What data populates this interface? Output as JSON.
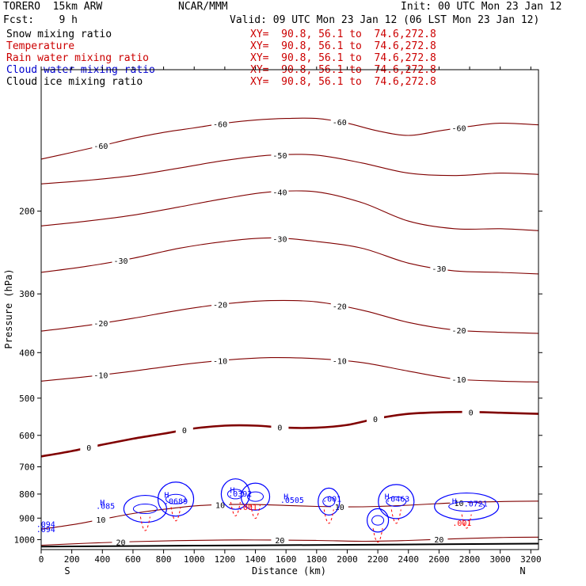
{
  "header": {
    "model": "TORERO  15km ARW",
    "org": "NCAR/MMM",
    "init": "Init: 00 UTC Mon 23 Jan 12",
    "fcst": "Fcst:    9 h",
    "valid": "Valid: 09 UTC Mon 23 Jan 12 (06 LST Mon 23 Jan 12)"
  },
  "fields": [
    {
      "name": "Snow mixing ratio",
      "xy": "XY=  90.8, 56.1 to  74.6,272.8",
      "color": "#000000",
      "xy_color": "#cc0000"
    },
    {
      "name": "Temperature",
      "xy": "XY=  90.8, 56.1 to  74.6,272.8",
      "color": "#cc0000",
      "xy_color": "#cc0000"
    },
    {
      "name": "Rain water mixing ratio",
      "xy": "XY=  90.8, 56.1 to  74.6,272.8",
      "color": "#cc0000",
      "xy_color": "#cc0000"
    },
    {
      "name": "Cloud water mixing ratio",
      "xy": "XY=  90.8, 56.1 to  74.6,272.8",
      "color": "#0000cc",
      "xy_color": "#cc0000"
    },
    {
      "name": "Cloud ice mixing ratio",
      "xy": "XY=  90.8, 56.1 to  74.6,272.8",
      "color": "#000000",
      "xy_color": "#cc0000"
    }
  ],
  "colors": {
    "temperature": "#800000",
    "rain": "#ff0000",
    "cloud_water": "#0000ff",
    "snow": "#000000",
    "ground": "#000000"
  },
  "chart_data": {
    "type": "contour",
    "xlabel": "Distance (km)",
    "ylabel": "Pressure (hPa)",
    "xlim": [
      0,
      3250
    ],
    "ylim": [
      1050,
      100
    ],
    "y_scale": "log-pressure",
    "x_ticks": [
      0,
      200,
      400,
      600,
      800,
      1000,
      1200,
      1400,
      1600,
      1800,
      2000,
      2200,
      2400,
      2600,
      2800,
      3000,
      3200
    ],
    "y_ticks": [
      200,
      300,
      400,
      500,
      600,
      700,
      800,
      900,
      1000
    ],
    "x_end_labels": {
      "left": "S",
      "right": "N"
    },
    "temperature_contours": [
      {
        "level": -60,
        "labels": [
          "-60",
          "-60",
          "-60",
          "-60"
        ],
        "points": [
          [
            0,
            155
          ],
          [
            200,
            150
          ],
          [
            400,
            145
          ],
          [
            600,
            140
          ],
          [
            800,
            136
          ],
          [
            1000,
            133
          ],
          [
            1200,
            130
          ],
          [
            1400,
            128
          ],
          [
            1600,
            127
          ],
          [
            1800,
            127
          ],
          [
            2000,
            130
          ],
          [
            2200,
            135
          ],
          [
            2400,
            138
          ],
          [
            2600,
            135
          ],
          [
            2800,
            132
          ],
          [
            3000,
            130
          ],
          [
            3250,
            131
          ]
        ]
      },
      {
        "level": -50,
        "labels": [
          "-50"
        ],
        "points": [
          [
            0,
            175
          ],
          [
            300,
            172
          ],
          [
            600,
            168
          ],
          [
            900,
            162
          ],
          [
            1200,
            156
          ],
          [
            1500,
            152
          ],
          [
            1800,
            152
          ],
          [
            2100,
            158
          ],
          [
            2400,
            166
          ],
          [
            2700,
            168
          ],
          [
            3000,
            166
          ],
          [
            3250,
            167
          ]
        ]
      },
      {
        "level": -40,
        "labels": [
          "-40"
        ],
        "points": [
          [
            0,
            215
          ],
          [
            300,
            210
          ],
          [
            600,
            204
          ],
          [
            900,
            196
          ],
          [
            1200,
            188
          ],
          [
            1500,
            182
          ],
          [
            1800,
            182
          ],
          [
            2100,
            192
          ],
          [
            2400,
            210
          ],
          [
            2700,
            218
          ],
          [
            3000,
            218
          ],
          [
            3250,
            220
          ]
        ]
      },
      {
        "level": -30,
        "labels": [
          "-30",
          "-30",
          "-30"
        ],
        "points": [
          [
            0,
            270
          ],
          [
            300,
            262
          ],
          [
            600,
            252
          ],
          [
            900,
            240
          ],
          [
            1200,
            232
          ],
          [
            1500,
            228
          ],
          [
            1800,
            232
          ],
          [
            2100,
            240
          ],
          [
            2400,
            258
          ],
          [
            2700,
            268
          ],
          [
            3000,
            270
          ],
          [
            3250,
            272
          ]
        ]
      },
      {
        "level": -20,
        "labels": [
          "-20",
          "-20",
          "-20",
          "-20"
        ],
        "points": [
          [
            0,
            360
          ],
          [
            300,
            350
          ],
          [
            600,
            338
          ],
          [
            900,
            325
          ],
          [
            1200,
            315
          ],
          [
            1500,
            310
          ],
          [
            1800,
            312
          ],
          [
            2100,
            325
          ],
          [
            2400,
            345
          ],
          [
            2700,
            358
          ],
          [
            3000,
            362
          ],
          [
            3250,
            364
          ]
        ]
      },
      {
        "level": -10,
        "labels": [
          "-10",
          "-10",
          "-10",
          "-10"
        ],
        "points": [
          [
            0,
            460
          ],
          [
            300,
            450
          ],
          [
            600,
            438
          ],
          [
            900,
            425
          ],
          [
            1200,
            415
          ],
          [
            1500,
            410
          ],
          [
            1800,
            412
          ],
          [
            2100,
            420
          ],
          [
            2400,
            438
          ],
          [
            2700,
            455
          ],
          [
            3000,
            460
          ],
          [
            3250,
            462
          ]
        ]
      },
      {
        "level": 0,
        "bold": true,
        "labels": [
          "0",
          "0",
          "0",
          "0",
          "0"
        ],
        "points": [
          [
            0,
            665
          ],
          [
            200,
            648
          ],
          [
            400,
            628
          ],
          [
            600,
            610
          ],
          [
            800,
            595
          ],
          [
            1000,
            580
          ],
          [
            1200,
            572
          ],
          [
            1400,
            572
          ],
          [
            1600,
            578
          ],
          [
            1800,
            578
          ],
          [
            2000,
            570
          ],
          [
            2200,
            552
          ],
          [
            2400,
            540
          ],
          [
            2600,
            536
          ],
          [
            2800,
            535
          ],
          [
            3000,
            537
          ],
          [
            3250,
            540
          ]
        ]
      },
      {
        "level": 10,
        "labels": [
          "10",
          "10",
          "10",
          "10"
        ],
        "points": [
          [
            0,
            950
          ],
          [
            200,
            930
          ],
          [
            400,
            905
          ],
          [
            600,
            880
          ],
          [
            800,
            862
          ],
          [
            1000,
            848
          ],
          [
            1200,
            842
          ],
          [
            1400,
            842
          ],
          [
            1600,
            846
          ],
          [
            1800,
            850
          ],
          [
            2000,
            852
          ],
          [
            2200,
            850
          ],
          [
            2400,
            845
          ],
          [
            2600,
            838
          ],
          [
            2800,
            833
          ],
          [
            3000,
            830
          ],
          [
            3250,
            828
          ]
        ]
      },
      {
        "level": 20,
        "labels": [
          "20",
          "20",
          "20"
        ],
        "points": [
          [
            0,
            1028
          ],
          [
            300,
            1018
          ],
          [
            600,
            1010
          ],
          [
            900,
            1005
          ],
          [
            1200,
            1002
          ],
          [
            1500,
            1002
          ],
          [
            1800,
            1004
          ],
          [
            2100,
            1008
          ],
          [
            2400,
            1004
          ],
          [
            2700,
            996
          ],
          [
            3000,
            990
          ],
          [
            3250,
            988
          ]
        ]
      }
    ],
    "rain_labels": [
      ".001",
      ".001"
    ],
    "cloud_water_labels": [
      ".085",
      ".0689",
      ".0392",
      ".0505",
      ".001",
      ".0463",
      ".0721",
      ".094",
      ".094"
    ],
    "high_markers": [
      "H",
      "H",
      "H",
      "H",
      "H",
      "H"
    ],
    "ground_line": [
      [
        0,
        1035
      ],
      [
        1000,
        1030
      ],
      [
        2000,
        1026
      ],
      [
        3250,
        1020
      ]
    ]
  }
}
